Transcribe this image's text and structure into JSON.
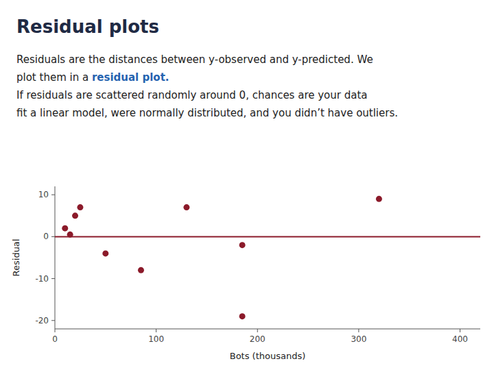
{
  "chart_data": {
    "type": "scatter",
    "title": "Residual plots",
    "subtitle": [
      [
        {
          "text": "Residuals are the distances between y-observed and y-predicted. We"
        }
      ],
      [
        {
          "text": "plot them in a "
        },
        {
          "text": "residual plot.",
          "color": "#2563B0"
        }
      ],
      [
        {
          "text": "If residuals are scattered randomly around 0, chances are your data"
        }
      ],
      [
        {
          "text": "fit a linear model, were normally distributed, and you didn’t have outliers."
        }
      ]
    ],
    "x": [
      10,
      15,
      20,
      25,
      50,
      85,
      130,
      185,
      185,
      320
    ],
    "values": [
      2,
      0.5,
      5,
      7,
      -4,
      -8,
      7,
      -2,
      -19,
      9
    ],
    "color": "#8B1A2A",
    "hline": 0,
    "xlabel": "Bots (thousands)",
    "ylabel": "Residual",
    "xlim": [
      0,
      420
    ],
    "ylim": [
      -22,
      12
    ],
    "xticks": [
      0,
      100,
      200,
      300,
      400
    ],
    "yticks": [
      -20,
      -10,
      0,
      10
    ],
    "grid": false
  }
}
